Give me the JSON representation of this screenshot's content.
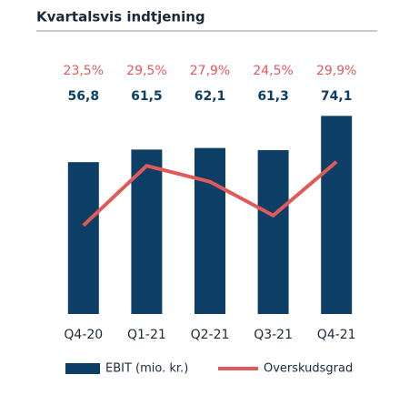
{
  "chart_data": {
    "type": "bar-line",
    "title": "Kvartalsvis indtjening",
    "categories": [
      "Q4-20",
      "Q1-21",
      "Q2-21",
      "Q3-21",
      "Q4-21"
    ],
    "series": [
      {
        "name": "EBIT (mio. kr.)",
        "type": "bar",
        "color": "#0d3f66",
        "values": [
          56.8,
          61.5,
          62.1,
          61.3,
          74.1
        ],
        "value_labels": [
          "56,8",
          "61,5",
          "62,1",
          "61,3",
          "74,1"
        ]
      },
      {
        "name": "Overskudsgrad",
        "type": "line",
        "axis": "y2",
        "color": "#e05a5a",
        "values": [
          23.5,
          29.5,
          27.9,
          24.5,
          29.9
        ],
        "value_labels": [
          "23,5%",
          "29,5%",
          "27,9%",
          "24,5%",
          "29,9%"
        ]
      }
    ],
    "ylim": [
      0,
      80
    ],
    "y2lim": [
      14.6,
      36.1
    ]
  }
}
